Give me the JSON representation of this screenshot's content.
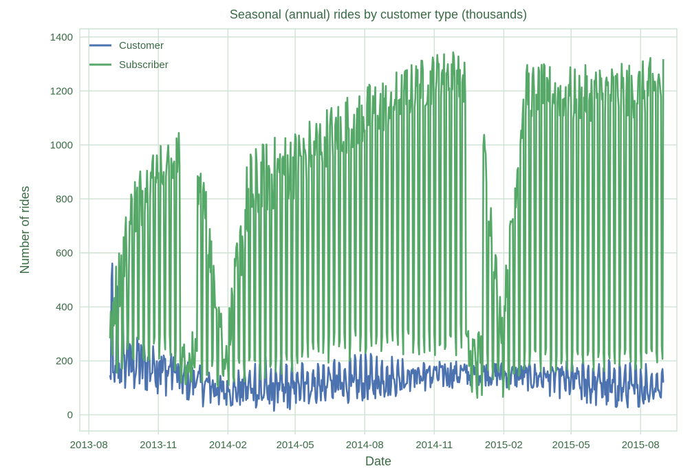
{
  "chart_data": {
    "type": "line",
    "title": "Seasonal (annual) rides by customer type (thousands)",
    "xlabel": "Date",
    "ylabel": "Number of rides",
    "xlim": [
      "2013-07-20",
      "2015-09-18"
    ],
    "ylim": [
      -60,
      1430
    ],
    "x_ticks": [
      "2013-08",
      "2013-11",
      "2014-02",
      "2014-05",
      "2014-08",
      "2014-11",
      "2015-02",
      "2015-05",
      "2015-08"
    ],
    "y_ticks": [
      0,
      200,
      400,
      600,
      800,
      1000,
      1200,
      1400
    ],
    "grid": true,
    "legend_position": "top-left",
    "colors": {
      "text": "#3a6b45",
      "grid": "#cfe3d3",
      "frame": "#cfe3d3",
      "background": "#ffffff"
    },
    "series": [
      {
        "name": "Customer",
        "color": "#4c72b0",
        "date_range": [
          "2013-08-29",
          "2015-08-31"
        ],
        "weekday_values": [
          [
            120,
            160
          ],
          [
            60,
            300
          ],
          [
            80,
            260
          ],
          [
            50,
            220
          ],
          [
            30,
            180
          ],
          [
            20,
            140
          ],
          [
            30,
            130
          ],
          [
            10,
            120
          ],
          [
            20,
            130
          ],
          [
            40,
            150
          ],
          [
            40,
            150
          ],
          [
            50,
            150
          ],
          [
            60,
            160
          ],
          [
            80,
            170
          ],
          [
            90,
            180
          ],
          [
            100,
            190
          ],
          [
            110,
            200
          ],
          [
            100,
            200
          ],
          [
            90,
            190
          ],
          [
            70,
            180
          ],
          [
            50,
            170
          ],
          [
            30,
            150
          ],
          [
            20,
            130
          ],
          [
            30,
            120
          ],
          [
            40,
            130
          ]
        ],
        "weekend_values": [
          [
            400,
            590
          ],
          [
            200,
            300
          ],
          [
            180,
            240
          ],
          [
            150,
            200
          ],
          [
            100,
            160
          ],
          [
            80,
            130
          ],
          [
            120,
            200
          ],
          [
            130,
            230
          ],
          [
            140,
            210
          ],
          [
            150,
            200
          ],
          [
            160,
            210
          ],
          [
            170,
            230
          ],
          [
            170,
            220
          ],
          [
            160,
            220
          ],
          [
            150,
            210
          ],
          [
            140,
            200
          ],
          [
            130,
            200
          ],
          [
            120,
            190
          ],
          [
            120,
            190
          ],
          [
            130,
            200
          ],
          [
            140,
            200
          ],
          [
            150,
            210
          ],
          [
            150,
            210
          ],
          [
            140,
            200
          ],
          [
            140,
            190
          ]
        ]
      },
      {
        "name": "Subscriber",
        "color": "#55a868",
        "date_range": [
          "2013-08-29",
          "2015-08-31"
        ],
        "weekday_values": [
          [
            250,
            450
          ],
          [
            600,
            900
          ],
          [
            850,
            1000
          ],
          [
            850,
            1050
          ],
          [
            700,
            950
          ],
          [
            150,
            300
          ],
          [
            650,
            980
          ],
          [
            750,
            1030
          ],
          [
            800,
            1060
          ],
          [
            900,
            1120
          ],
          [
            950,
            1180
          ],
          [
            1000,
            1220
          ],
          [
            1050,
            1260
          ],
          [
            1100,
            1300
          ],
          [
            1150,
            1340
          ],
          [
            1200,
            1360
          ],
          [
            1050,
            1250
          ],
          [
            250,
            400
          ],
          [
            1100,
            1300
          ],
          [
            1100,
            1300
          ],
          [
            1080,
            1290
          ],
          [
            1090,
            1300
          ],
          [
            1090,
            1300
          ],
          [
            1100,
            1310
          ],
          [
            1120,
            1340
          ]
        ],
        "weekend_values": [
          [
            120,
            300
          ],
          [
            200,
            320
          ],
          [
            200,
            330
          ],
          [
            150,
            280
          ],
          [
            120,
            250
          ],
          [
            80,
            180
          ],
          [
            120,
            250
          ],
          [
            130,
            260
          ],
          [
            160,
            280
          ],
          [
            180,
            300
          ],
          [
            200,
            320
          ],
          [
            200,
            330
          ],
          [
            200,
            320
          ],
          [
            220,
            340
          ],
          [
            220,
            350
          ],
          [
            220,
            350
          ],
          [
            200,
            320
          ],
          [
            60,
            160
          ],
          [
            160,
            250
          ],
          [
            150,
            250
          ],
          [
            150,
            250
          ],
          [
            160,
            250
          ],
          [
            160,
            260
          ],
          [
            160,
            260
          ],
          [
            170,
            270
          ]
        ],
        "gaps": [
          [
            "2013-12-01",
            "2013-12-20"
          ],
          [
            "2014-12-15",
            "2015-01-03"
          ]
        ]
      }
    ]
  }
}
